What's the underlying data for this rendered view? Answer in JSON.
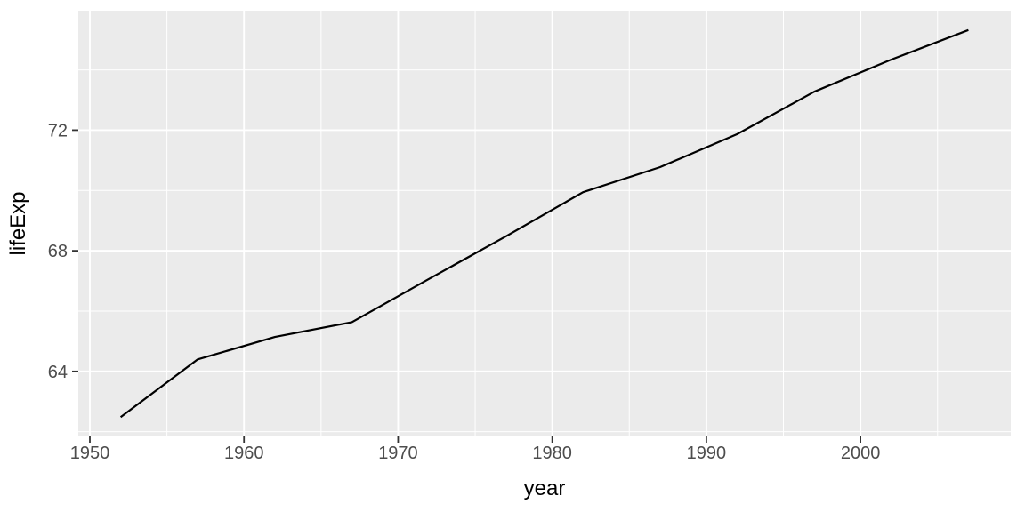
{
  "chart_data": {
    "type": "line",
    "title": "",
    "xlabel": "year",
    "ylabel": "lifeExp",
    "x": [
      1952,
      1957,
      1962,
      1967,
      1972,
      1977,
      1982,
      1987,
      1992,
      1997,
      2002,
      2007
    ],
    "y": [
      62.485,
      64.399,
      65.142,
      65.634,
      67.065,
      68.481,
      69.942,
      70.774,
      71.868,
      73.275,
      74.34,
      75.32
    ],
    "xlim": [
      1949.25,
      2009.75
    ],
    "ylim": [
      61.843,
      75.962
    ],
    "x_major_ticks": [
      1950,
      1960,
      1970,
      1980,
      1990,
      2000
    ],
    "x_major_tick_labels": [
      "1950",
      "1960",
      "1970",
      "1980",
      "1990",
      "2000"
    ],
    "x_minor_gridlines": [
      1955,
      1965,
      1975,
      1985,
      1995,
      2005
    ],
    "y_major_ticks": [
      64,
      68,
      72
    ],
    "y_major_tick_labels": [
      "64",
      "68",
      "72"
    ],
    "y_minor_gridlines": [
      62,
      66,
      70,
      74
    ],
    "grid": "major+minor",
    "legend_position": "none",
    "style": {
      "panel_bg": "#EBEBEB",
      "grid_color": "#FFFFFF",
      "line_color": "#000000",
      "tick_mark_color": "#333333",
      "tick_label_color": "#4D4D4D",
      "axis_title_color": "#000000",
      "outer_bg": "#FFFFFF"
    }
  }
}
